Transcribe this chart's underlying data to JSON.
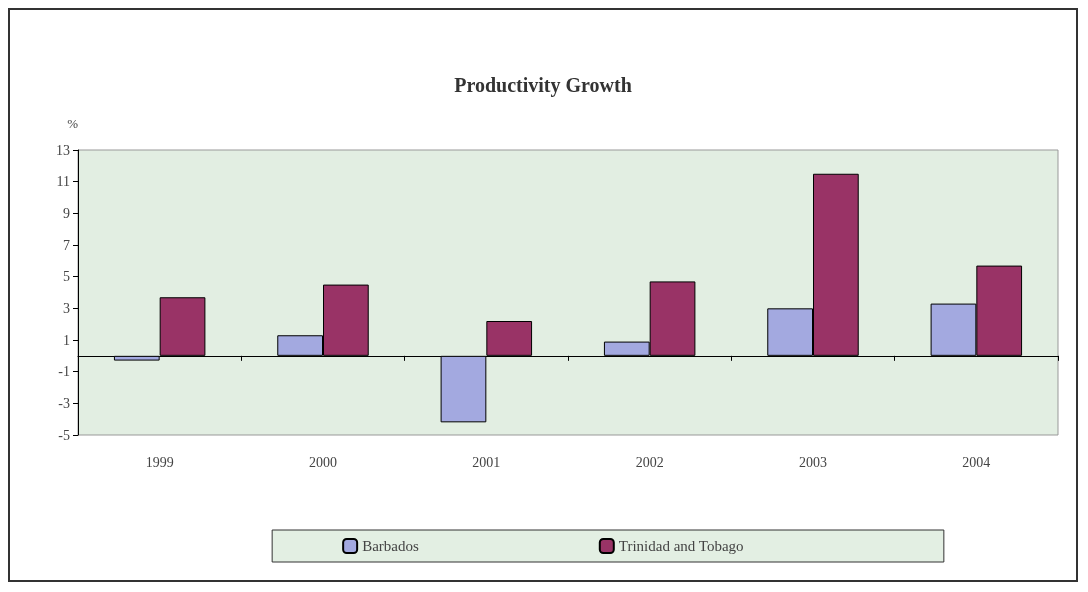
{
  "chart_data": {
    "type": "bar",
    "title": "Productivity Growth",
    "ylabel": "%",
    "categories": [
      "1999",
      "2000",
      "2001",
      "2002",
      "2003",
      "2004"
    ],
    "series": [
      {
        "name": "Barbados",
        "color": "#a3a9e0",
        "values": [
          -0.3,
          1.3,
          -4.2,
          0.9,
          3.0,
          3.3
        ]
      },
      {
        "name": "Trinidad and Tobago",
        "color": "#993366",
        "values": [
          3.7,
          4.5,
          2.2,
          4.7,
          11.5,
          5.7
        ]
      }
    ],
    "ylim": [
      -5,
      13
    ],
    "yticks": [
      -5,
      -3,
      -1,
      1,
      3,
      5,
      7,
      9,
      11,
      13
    ],
    "grid": false,
    "legend": "bottom"
  }
}
